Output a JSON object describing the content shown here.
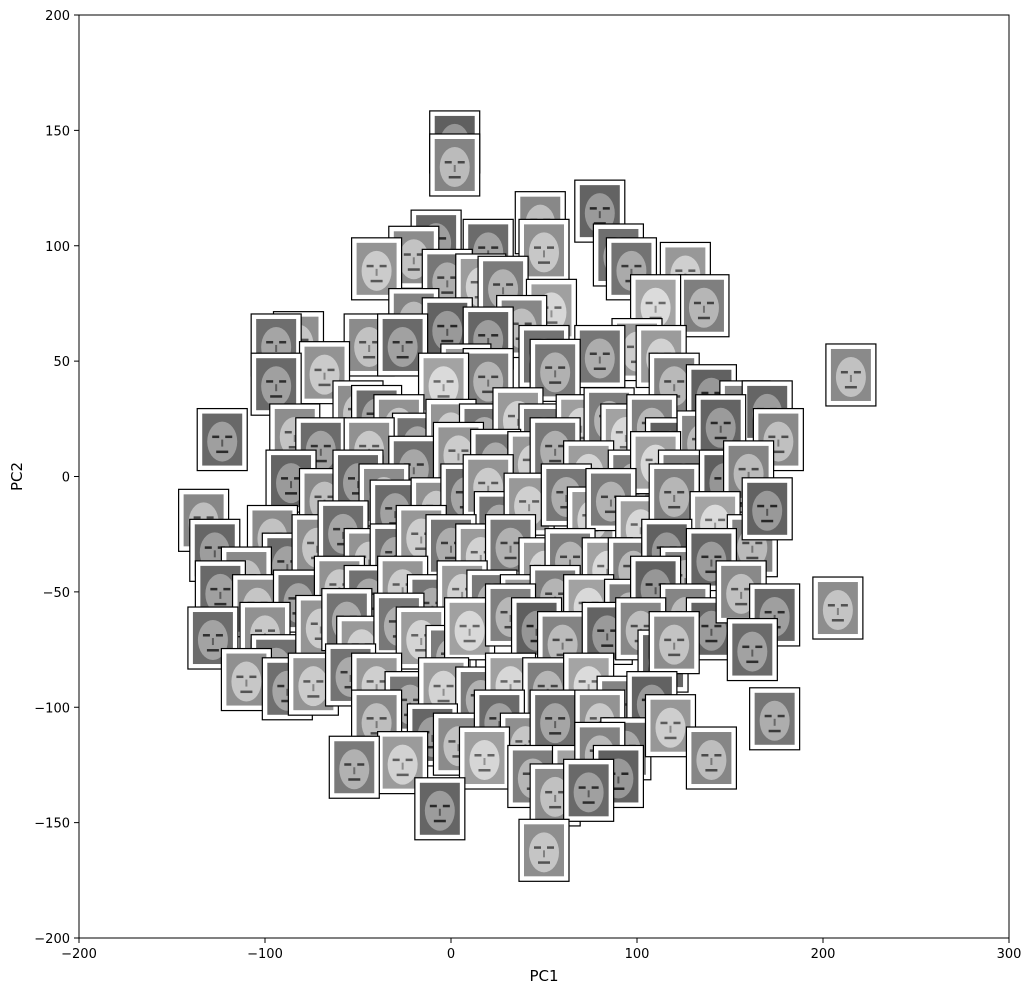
{
  "chart_data": {
    "type": "scatter",
    "title": "",
    "xlabel": "PC1",
    "ylabel": "PC2",
    "xlim": [
      -200,
      300
    ],
    "ylim": [
      -200,
      200
    ],
    "xticks": [
      -200,
      -100,
      0,
      100,
      200,
      300
    ],
    "yticks": [
      -200,
      -150,
      -100,
      -50,
      0,
      50,
      100,
      150,
      200
    ],
    "xtick_labels": [
      "−200",
      "−100",
      "0",
      "100",
      "200",
      "300"
    ],
    "ytick_labels": [
      "−200",
      "−150",
      "−100",
      "−50",
      "0",
      "50",
      "100",
      "150",
      "200"
    ],
    "grid": false,
    "marker": "grayscale-face-thumbnail",
    "series": [
      {
        "points": [
          {
            "x": 2,
            "y": 145
          },
          {
            "x": 2,
            "y": 135
          },
          {
            "x": 80,
            "y": 115
          },
          {
            "x": 48,
            "y": 110
          },
          {
            "x": -8,
            "y": 102
          },
          {
            "x": -20,
            "y": 95
          },
          {
            "x": 20,
            "y": 98
          },
          {
            "x": 50,
            "y": 98
          },
          {
            "x": 90,
            "y": 96
          },
          {
            "x": -40,
            "y": 90
          },
          {
            "x": 97,
            "y": 90
          },
          {
            "x": 126,
            "y": 88
          },
          {
            "x": -2,
            "y": 85
          },
          {
            "x": 16,
            "y": 83
          },
          {
            "x": 28,
            "y": 82
          },
          {
            "x": 54,
            "y": 72
          },
          {
            "x": 136,
            "y": 74
          },
          {
            "x": 110,
            "y": 74
          },
          {
            "x": -20,
            "y": 68
          },
          {
            "x": -2,
            "y": 64
          },
          {
            "x": 38,
            "y": 65
          },
          {
            "x": 20,
            "y": 60
          },
          {
            "x": -44,
            "y": 57
          },
          {
            "x": -26,
            "y": 57
          },
          {
            "x": -82,
            "y": 58
          },
          {
            "x": -94,
            "y": 57
          },
          {
            "x": -68,
            "y": 45
          },
          {
            "x": 50,
            "y": 52
          },
          {
            "x": 100,
            "y": 55
          },
          {
            "x": 80,
            "y": 52
          },
          {
            "x": 113,
            "y": 52
          },
          {
            "x": 56,
            "y": 46
          },
          {
            "x": 8,
            "y": 44
          },
          {
            "x": 20,
            "y": 42
          },
          {
            "x": -4,
            "y": 40
          },
          {
            "x": 120,
            "y": 40
          },
          {
            "x": 140,
            "y": 35
          },
          {
            "x": 158,
            "y": 28
          },
          {
            "x": 170,
            "y": 28
          },
          {
            "x": 215,
            "y": 44
          },
          {
            "x": -94,
            "y": 40
          },
          {
            "x": -50,
            "y": 28
          },
          {
            "x": -40,
            "y": 26
          },
          {
            "x": -28,
            "y": 22
          },
          {
            "x": -18,
            "y": 14
          },
          {
            "x": 0,
            "y": 20
          },
          {
            "x": 18,
            "y": 18
          },
          {
            "x": 36,
            "y": 25
          },
          {
            "x": 50,
            "y": 18
          },
          {
            "x": 70,
            "y": 22
          },
          {
            "x": 85,
            "y": 25
          },
          {
            "x": 94,
            "y": 18
          },
          {
            "x": 108,
            "y": 22
          },
          {
            "x": 118,
            "y": 12
          },
          {
            "x": 135,
            "y": 15
          },
          {
            "x": 145,
            "y": 22
          },
          {
            "x": 176,
            "y": 16
          },
          {
            "x": -123,
            "y": 16
          },
          {
            "x": -84,
            "y": 18
          },
          {
            "x": -70,
            "y": 12
          },
          {
            "x": -44,
            "y": 12
          },
          {
            "x": -20,
            "y": 4
          },
          {
            "x": 4,
            "y": 10
          },
          {
            "x": 24,
            "y": 7
          },
          {
            "x": 44,
            "y": 6
          },
          {
            "x": 56,
            "y": 12
          },
          {
            "x": 74,
            "y": 2
          },
          {
            "x": 98,
            "y": -2
          },
          {
            "x": 110,
            "y": 6
          },
          {
            "x": 125,
            "y": -2
          },
          {
            "x": 147,
            "y": -2
          },
          {
            "x": 160,
            "y": 2
          },
          {
            "x": -86,
            "y": -2
          },
          {
            "x": -68,
            "y": -10
          },
          {
            "x": -50,
            "y": -2
          },
          {
            "x": -36,
            "y": -8
          },
          {
            "x": -30,
            "y": -15
          },
          {
            "x": -8,
            "y": -14
          },
          {
            "x": 8,
            "y": -8
          },
          {
            "x": 20,
            "y": -4
          },
          {
            "x": 26,
            "y": -20
          },
          {
            "x": 42,
            "y": -12
          },
          {
            "x": 62,
            "y": -8
          },
          {
            "x": 76,
            "y": -18
          },
          {
            "x": 86,
            "y": -10
          },
          {
            "x": 102,
            "y": -22
          },
          {
            "x": 120,
            "y": -8
          },
          {
            "x": 142,
            "y": -20
          },
          {
            "x": 162,
            "y": -30
          },
          {
            "x": 170,
            "y": -14
          },
          {
            "x": -133,
            "y": -19
          },
          {
            "x": -127,
            "y": -32
          },
          {
            "x": -96,
            "y": -26
          },
          {
            "x": -88,
            "y": -38
          },
          {
            "x": -72,
            "y": -30
          },
          {
            "x": -58,
            "y": -24
          },
          {
            "x": -44,
            "y": -36
          },
          {
            "x": -30,
            "y": -34
          },
          {
            "x": -16,
            "y": -26
          },
          {
            "x": 0,
            "y": -30
          },
          {
            "x": 16,
            "y": -34
          },
          {
            "x": 32,
            "y": -30
          },
          {
            "x": 50,
            "y": -40
          },
          {
            "x": 64,
            "y": -36
          },
          {
            "x": 84,
            "y": -40
          },
          {
            "x": 98,
            "y": -40
          },
          {
            "x": 116,
            "y": -32
          },
          {
            "x": 126,
            "y": -44
          },
          {
            "x": 140,
            "y": -36
          },
          {
            "x": -110,
            "y": -44
          },
          {
            "x": -124,
            "y": -50
          },
          {
            "x": -104,
            "y": -56
          },
          {
            "x": -82,
            "y": -54
          },
          {
            "x": -60,
            "y": -48
          },
          {
            "x": -44,
            "y": -52
          },
          {
            "x": -26,
            "y": -48
          },
          {
            "x": -10,
            "y": -56
          },
          {
            "x": 6,
            "y": -50
          },
          {
            "x": 22,
            "y": -54
          },
          {
            "x": 40,
            "y": -56
          },
          {
            "x": 56,
            "y": -52
          },
          {
            "x": 74,
            "y": -56
          },
          {
            "x": 96,
            "y": -58
          },
          {
            "x": 110,
            "y": -48
          },
          {
            "x": 126,
            "y": -60
          },
          {
            "x": 140,
            "y": -66
          },
          {
            "x": 156,
            "y": -50
          },
          {
            "x": 174,
            "y": -60
          },
          {
            "x": 208,
            "y": -57
          },
          {
            "x": -128,
            "y": -70
          },
          {
            "x": -100,
            "y": -68
          },
          {
            "x": -94,
            "y": -82
          },
          {
            "x": -70,
            "y": -65
          },
          {
            "x": -56,
            "y": -62
          },
          {
            "x": -48,
            "y": -74
          },
          {
            "x": -28,
            "y": -64
          },
          {
            "x": -16,
            "y": -70
          },
          {
            "x": 0,
            "y": -78
          },
          {
            "x": 10,
            "y": -66
          },
          {
            "x": 32,
            "y": -60
          },
          {
            "x": 46,
            "y": -66
          },
          {
            "x": 60,
            "y": -72
          },
          {
            "x": 84,
            "y": -68
          },
          {
            "x": 102,
            "y": -66
          },
          {
            "x": 114,
            "y": -80
          },
          {
            "x": 120,
            "y": -72
          },
          {
            "x": 162,
            "y": -75
          },
          {
            "x": -110,
            "y": -88
          },
          {
            "x": -88,
            "y": -92
          },
          {
            "x": -74,
            "y": -90
          },
          {
            "x": -54,
            "y": -86
          },
          {
            "x": -40,
            "y": -90
          },
          {
            "x": -22,
            "y": -98
          },
          {
            "x": -4,
            "y": -92
          },
          {
            "x": 16,
            "y": -96
          },
          {
            "x": 32,
            "y": -90
          },
          {
            "x": 52,
            "y": -92
          },
          {
            "x": 74,
            "y": -90
          },
          {
            "x": 92,
            "y": -100
          },
          {
            "x": 108,
            "y": -98
          },
          {
            "x": -40,
            "y": -106
          },
          {
            "x": -10,
            "y": -112
          },
          {
            "x": 4,
            "y": -116
          },
          {
            "x": 26,
            "y": -106
          },
          {
            "x": 40,
            "y": -116
          },
          {
            "x": 56,
            "y": -106
          },
          {
            "x": 80,
            "y": -106
          },
          {
            "x": 94,
            "y": -118
          },
          {
            "x": 118,
            "y": -108
          },
          {
            "x": 174,
            "y": -105
          },
          {
            "x": -26,
            "y": -124
          },
          {
            "x": -52,
            "y": -126
          },
          {
            "x": 18,
            "y": -122
          },
          {
            "x": 44,
            "y": -130
          },
          {
            "x": 68,
            "y": -130
          },
          {
            "x": 80,
            "y": -120
          },
          {
            "x": 90,
            "y": -130
          },
          {
            "x": 140,
            "y": -122
          },
          {
            "x": -6,
            "y": -144
          },
          {
            "x": 56,
            "y": -138
          },
          {
            "x": 74,
            "y": -136
          },
          {
            "x": 50,
            "y": -162
          }
        ]
      }
    ]
  }
}
